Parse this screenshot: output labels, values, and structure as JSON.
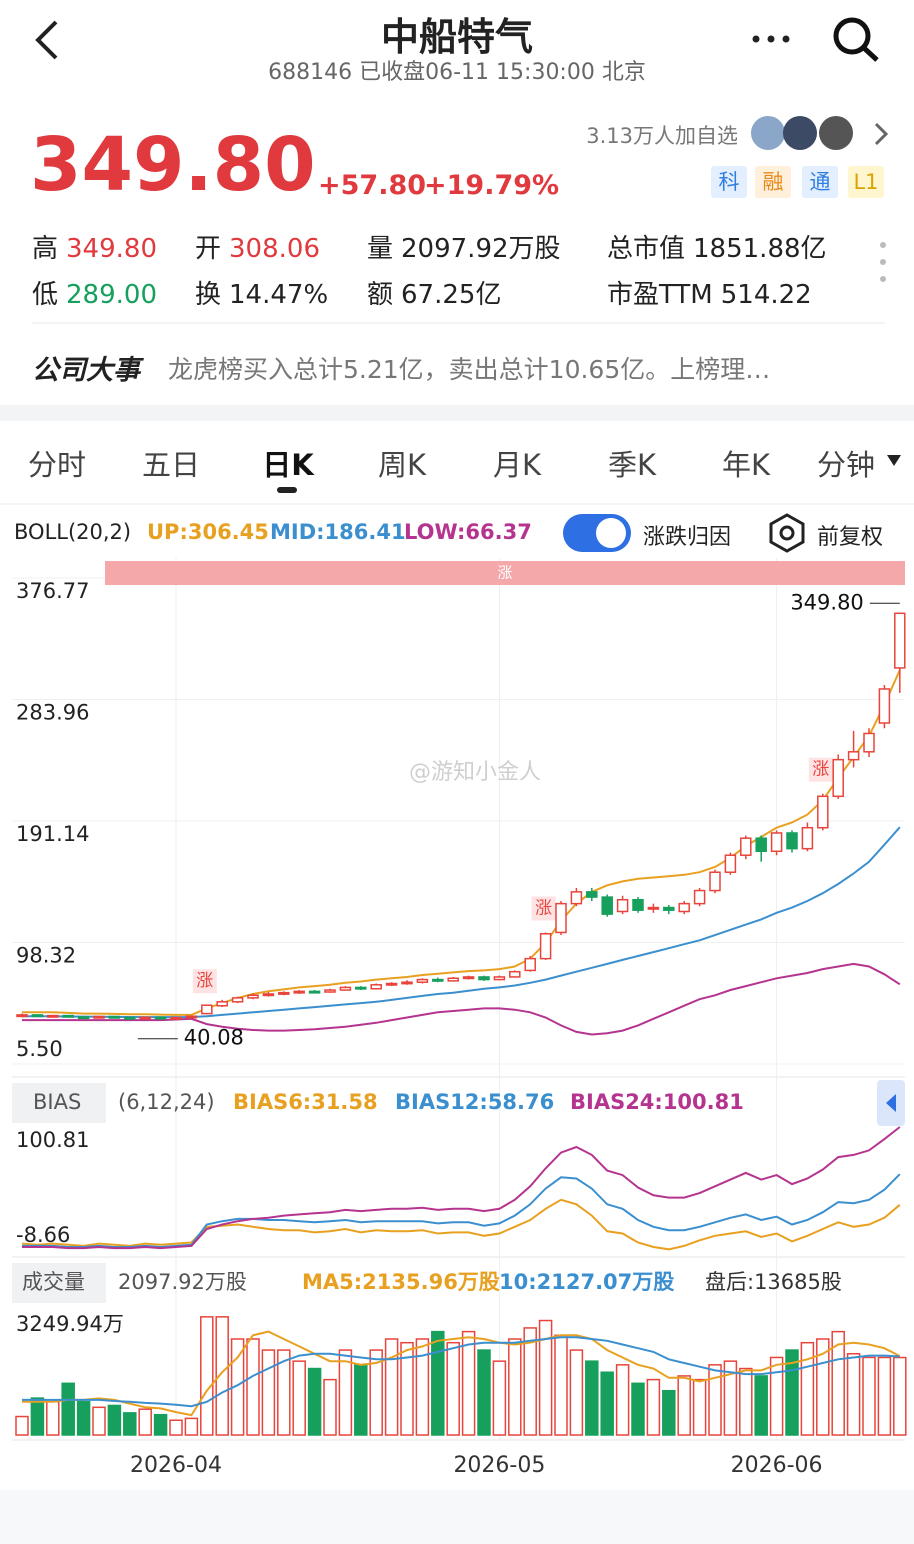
{
  "header": {
    "title": "中船特气",
    "subtitle": "688146 已收盘06-11 15:30:00 北京"
  },
  "quote": {
    "price": "349.80",
    "change": "+57.80",
    "change_pct": "+19.79%",
    "followers": "3.13万人加自选",
    "badges": [
      "科",
      "融",
      "通",
      "L1"
    ],
    "stats": [
      {
        "label": "高",
        "value": "349.80",
        "color": "#e0393e"
      },
      {
        "label": "开",
        "value": "308.06",
        "color": "#e0393e"
      },
      {
        "label": "量",
        "value": "2097.92万股",
        "color": "#222"
      },
      {
        "label": "总市值",
        "value": "1851.88亿",
        "color": "#222"
      },
      {
        "label": "低",
        "value": "289.00",
        "color": "#17a05d"
      },
      {
        "label": "换",
        "value": "14.47%",
        "color": "#222"
      },
      {
        "label": "额",
        "value": "67.25亿",
        "color": "#222"
      },
      {
        "label": "市盈TTM",
        "value": "514.22",
        "color": "#222"
      }
    ]
  },
  "news": {
    "label": "公司大事",
    "text": "龙虎榜买入总计5.21亿，卖出总计10.65亿。上榜理…"
  },
  "tabs": {
    "items": [
      "分时",
      "五日",
      "日K",
      "周K",
      "月K",
      "季K",
      "年K",
      "分钟"
    ],
    "active": 2
  },
  "toolbar": {
    "attribution": "涨跌归因",
    "adjust": "前复权"
  },
  "watermark": "@游知小金人",
  "chart_data": [
    {
      "type": "candlestick",
      "title": "BOLL(20,2)",
      "band_label": "涨",
      "up_color": "#e8443b",
      "down_color": "#17a05d",
      "categories": [
        null,
        null,
        null,
        null,
        null,
        null,
        null,
        null,
        null,
        null,
        "2026-04",
        null,
        null,
        null,
        null,
        null,
        null,
        null,
        null,
        null,
        null,
        null,
        null,
        null,
        null,
        null,
        null,
        null,
        null,
        null,
        null,
        "2026-05",
        null,
        null,
        null,
        null,
        null,
        null,
        null,
        null,
        null,
        null,
        null,
        null,
        null,
        null,
        null,
        null,
        null,
        "2026-06",
        null,
        null,
        null,
        null,
        null,
        null,
        null,
        null
      ],
      "markers": [
        null,
        null,
        null,
        null,
        null,
        null,
        null,
        null,
        null,
        null,
        null,
        null,
        "涨",
        null,
        null,
        null,
        null,
        null,
        null,
        null,
        null,
        null,
        null,
        null,
        null,
        null,
        null,
        null,
        null,
        null,
        null,
        null,
        null,
        null,
        "涨",
        null,
        null,
        null,
        null,
        null,
        null,
        null,
        null,
        null,
        null,
        null,
        null,
        null,
        null,
        null,
        null,
        null,
        "涨",
        null,
        null,
        null,
        null,
        null
      ],
      "open": [
        42,
        43,
        42,
        42.5,
        41.5,
        41,
        41.8,
        41,
        40.6,
        41.2,
        40.5,
        41,
        44,
        50,
        53,
        56,
        58,
        59,
        60,
        61,
        60.5,
        62,
        64,
        63,
        66,
        67,
        68,
        70,
        69,
        71,
        72,
        70,
        72,
        77,
        86,
        106,
        128,
        137,
        133,
        122,
        131,
        124,
        125,
        122,
        128,
        138,
        152,
        165,
        178,
        168,
        182,
        170,
        186,
        210,
        238,
        244,
        266,
        308.06
      ],
      "high": [
        44,
        43.5,
        43,
        43,
        42,
        42.3,
        42,
        41.5,
        41.8,
        41.5,
        41.6,
        42.5,
        50.4,
        54.5,
        57,
        59.5,
        60.5,
        61,
        62,
        62,
        63,
        65,
        65,
        67,
        68,
        69.5,
        71,
        71.5,
        72,
        73,
        73,
        73,
        77,
        88,
        106,
        130,
        140,
        140,
        135,
        134,
        133,
        128,
        127,
        130,
        140,
        154,
        167,
        180,
        180,
        184,
        184,
        190,
        212,
        242,
        260,
        262,
        295,
        349.8
      ],
      "low": [
        41.5,
        41.5,
        41.5,
        41,
        40.5,
        40.8,
        40.6,
        40.08,
        40.3,
        40.2,
        40.2,
        40.8,
        43.5,
        49,
        52,
        55,
        57,
        58,
        59,
        59.5,
        60,
        61.5,
        62,
        62.5,
        65,
        66,
        67,
        68,
        68.5,
        70,
        69,
        69.5,
        71.5,
        76,
        85,
        104,
        126,
        130,
        118,
        120,
        121,
        121,
        120,
        120,
        126,
        136,
        150,
        162,
        160,
        165,
        167,
        168,
        184,
        208,
        232,
        240,
        262,
        289
      ],
      "close": [
        43,
        42,
        42.5,
        41.5,
        41,
        41.8,
        41,
        40.6,
        41.2,
        40.5,
        41,
        42,
        50.4,
        53,
        56,
        58,
        59,
        60,
        61,
        60.5,
        62,
        64,
        63,
        66,
        67,
        68,
        70,
        69,
        71,
        72,
        70,
        72,
        76,
        86,
        105,
        128,
        137,
        133,
        120,
        131,
        123,
        125,
        123,
        128,
        138,
        152,
        165,
        178,
        168,
        182,
        170,
        186,
        210,
        238,
        244,
        258,
        292,
        349.8
      ],
      "series": [
        {
          "name": "UP:306.45",
          "color": "#e8a020",
          "values": [
            45,
            45,
            45,
            44.5,
            44,
            44,
            43.8,
            43.5,
            43.5,
            43.2,
            43,
            43,
            48,
            52,
            56,
            59,
            61,
            62.5,
            64,
            65,
            66,
            67.5,
            68.5,
            70,
            71,
            72,
            73.5,
            74.5,
            75.5,
            76.5,
            77,
            78,
            80,
            86,
            98,
            115,
            128,
            137,
            142,
            145,
            147,
            148,
            149,
            150,
            152,
            156,
            163,
            172,
            179,
            186,
            190,
            196,
            207,
            224,
            240,
            256,
            280,
            306.45
          ]
        },
        {
          "name": "MID:186.41",
          "color": "#3b8fcf",
          "values": [
            42,
            42,
            42,
            41.8,
            41.7,
            41.6,
            41.5,
            41.4,
            41.3,
            41.3,
            41.3,
            41.4,
            42,
            43,
            44,
            45,
            46,
            47,
            48,
            49,
            50,
            51,
            52,
            53,
            54.5,
            56,
            57.5,
            59,
            60,
            61.5,
            63,
            64,
            65.5,
            67.5,
            70,
            73,
            76,
            79,
            82,
            85,
            88,
            91,
            94,
            97,
            100,
            104,
            108,
            112,
            116,
            121,
            125,
            130,
            136,
            143,
            151,
            160,
            173,
            186.41
          ]
        },
        {
          "name": "LOW:66.37",
          "color": "#b5348f",
          "values": [
            39,
            39,
            39,
            39,
            39,
            39,
            39,
            39,
            39,
            39,
            39.5,
            40,
            36,
            34,
            32.5,
            31.5,
            31,
            31,
            31.5,
            32,
            33,
            34,
            35.5,
            37,
            39,
            41,
            43,
            45,
            46,
            47,
            48,
            48,
            47,
            45,
            41,
            35,
            30,
            28,
            29,
            31,
            35,
            40,
            45,
            50,
            55,
            58,
            62,
            65,
            68,
            71,
            73,
            75,
            78,
            80,
            82,
            80,
            74,
            66.37
          ]
        }
      ],
      "annotations": [
        {
          "label": "349.80",
          "value": 349.8
        },
        {
          "label": "40.08",
          "value": 40.08
        }
      ],
      "ylim": [
        5.5,
        376.77
      ],
      "yticks": [
        {
          "value": 5.5,
          "label": "5.50"
        },
        98.32,
        191.14,
        283.96,
        376.77
      ]
    },
    {
      "type": "line",
      "title": "BIAS",
      "subtitle": "(6,12,24)",
      "series": [
        {
          "name": "BIAS6:31.58",
          "color": "#e8a020",
          "values": [
            -3,
            -4,
            -3,
            -4,
            -5,
            -3,
            -4,
            -5,
            -3,
            -4,
            -3,
            -2,
            12,
            13,
            14,
            12,
            10,
            9,
            9,
            7,
            8,
            10,
            7,
            9,
            8,
            8,
            9,
            6,
            7,
            7,
            4,
            6,
            12,
            18,
            28,
            36,
            32,
            22,
            8,
            6,
            -2,
            -6,
            -8,
            -5,
            0,
            4,
            6,
            8,
            3,
            6,
            -1,
            4,
            10,
            16,
            12,
            14,
            20,
            31.58
          ]
        },
        {
          "name": "BIAS12:58.76",
          "color": "#3b8fcf",
          "values": [
            -5,
            -5,
            -5,
            -6,
            -6,
            -5,
            -6,
            -6,
            -5,
            -6,
            -5,
            -4,
            14,
            17,
            19,
            19,
            18,
            18,
            17,
            16,
            17,
            18,
            16,
            17,
            17,
            17,
            17,
            15,
            16,
            16,
            13,
            15,
            22,
            32,
            46,
            56,
            55,
            46,
            32,
            28,
            18,
            12,
            9,
            9,
            12,
            16,
            20,
            23,
            18,
            21,
            14,
            18,
            25,
            34,
            33,
            36,
            45,
            58.76
          ]
        },
        {
          "name": "BIAS24:100.81",
          "color": "#b5348f",
          "values": [
            -6,
            -6,
            -6,
            -7,
            -7,
            -6,
            -7,
            -7,
            -6,
            -7,
            -6,
            -5,
            10,
            14,
            17,
            19,
            20,
            22,
            23,
            24,
            25,
            27,
            26,
            27,
            28,
            28,
            29,
            27,
            28,
            28,
            26,
            28,
            36,
            48,
            64,
            78,
            83,
            76,
            62,
            58,
            47,
            40,
            38,
            38,
            42,
            48,
            54,
            60,
            54,
            58,
            50,
            55,
            63,
            74,
            76,
            80,
            90,
            100.81
          ]
        }
      ],
      "ylim": [
        -8.66,
        100.81
      ],
      "yticks": [
        -8.66,
        100.81
      ]
    },
    {
      "type": "bar",
      "title": "成交量",
      "subtitle": "2097.92万股",
      "after_hours": "盘后:13685股",
      "values": [
        500,
        1000,
        900,
        1400,
        900,
        750,
        800,
        600,
        700,
        550,
        400,
        450,
        3200,
        3200,
        2600,
        2600,
        2300,
        2300,
        2000,
        1800,
        1500,
        2300,
        1900,
        2300,
        2600,
        2500,
        2600,
        2800,
        2500,
        2800,
        2300,
        2000,
        2600,
        2900,
        3100,
        2700,
        2300,
        2000,
        1700,
        1900,
        1400,
        1500,
        1200,
        1600,
        1500,
        1900,
        2000,
        1800,
        1600,
        2100,
        2300,
        2500,
        2600,
        2800,
        2200,
        2100,
        2100,
        2097.92
      ],
      "series": [
        {
          "name": "MA5:2135.96万股",
          "color": "#e8a020",
          "values": [
            900,
            900,
            900,
            950,
            950,
            990,
            950,
            850,
            750,
            720,
            620,
            540,
            1200,
            1700,
            2100,
            2700,
            2800,
            2600,
            2400,
            2200,
            2000,
            2000,
            1900,
            1950,
            2100,
            2300,
            2400,
            2550,
            2600,
            2650,
            2600,
            2500,
            2450,
            2500,
            2600,
            2700,
            2700,
            2600,
            2300,
            2100,
            1900,
            1800,
            1550,
            1550,
            1450,
            1550,
            1650,
            1750,
            1750,
            1900,
            1950,
            2050,
            2200,
            2450,
            2500,
            2450,
            2350,
            2135.96
          ]
        },
        {
          "name": "10:2127.07万股",
          "color": "#3b8fcf",
          "values": [
            950,
            950,
            950,
            950,
            950,
            950,
            920,
            900,
            870,
            850,
            820,
            780,
            900,
            1150,
            1350,
            1600,
            1800,
            2000,
            2150,
            2200,
            2200,
            2150,
            2100,
            2050,
            2050,
            2100,
            2150,
            2250,
            2350,
            2450,
            2500,
            2500,
            2500,
            2550,
            2600,
            2650,
            2650,
            2600,
            2550,
            2450,
            2350,
            2250,
            2050,
            1950,
            1850,
            1750,
            1700,
            1650,
            1650,
            1700,
            1750,
            1850,
            1950,
            2050,
            2100,
            2150,
            2150,
            2127.07
          ]
        }
      ],
      "ylim": [
        0,
        3249.94
      ],
      "yticks": [
        {
          "value": 3249.94,
          "label": "3249.94万"
        }
      ]
    }
  ]
}
